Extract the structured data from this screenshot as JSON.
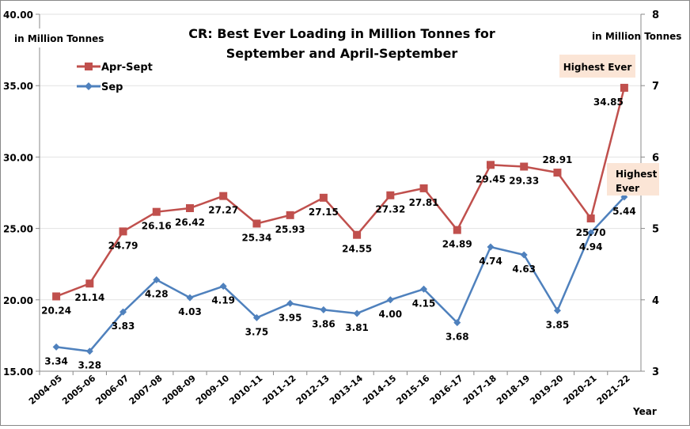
{
  "chart_data": {
    "type": "line",
    "title_line1": "CR: Best Ever Loading in Million Tonnes for",
    "title_line2": "September and April-September",
    "ylabel_left": "in Million Tonnes",
    "ylabel_right": "in Million Tonnes",
    "xlabel": "Year",
    "ylim_left": [
      15,
      40
    ],
    "ylim_right": [
      3,
      8
    ],
    "yticks_left": [
      "15.00",
      "20.00",
      "25.00",
      "30.00",
      "35.00",
      "40.00"
    ],
    "yticks_right": [
      "3",
      "4",
      "5",
      "6",
      "7",
      "8"
    ],
    "grid": true,
    "legend_position": "top-left",
    "categories": [
      "2004-05",
      "2005-06",
      "2006-07",
      "2007-08",
      "2008-09",
      "2009-10",
      "2010-11",
      "2011-12",
      "2012-13",
      "2013-14",
      "2014-15",
      "2015-16",
      "2016-17",
      "2017-18",
      "2018-19",
      "2019-20",
      "2020-21",
      "2021-22"
    ],
    "series": [
      {
        "name": "Apr-Sept",
        "axis": "left",
        "color": "#C0504D",
        "marker": "square",
        "values": [
          20.24,
          21.14,
          24.79,
          26.16,
          26.42,
          27.27,
          25.34,
          25.93,
          27.15,
          24.55,
          27.32,
          27.81,
          24.89,
          29.45,
          29.33,
          28.91,
          25.7,
          34.85
        ]
      },
      {
        "name": "Sep",
        "axis": "right",
        "color": "#4F81BD",
        "marker": "diamond",
        "values": [
          3.34,
          3.28,
          3.83,
          4.28,
          4.03,
          4.19,
          3.75,
          3.95,
          3.86,
          3.81,
          4.0,
          4.15,
          3.68,
          4.74,
          4.63,
          3.85,
          4.94,
          5.44
        ]
      }
    ],
    "annotations": [
      {
        "text": "Highest Ever",
        "series": "Apr-Sept",
        "category": "2021-22"
      },
      {
        "text_line1": "Highest",
        "text_line2": "Ever",
        "series": "Sep",
        "category": "2021-22"
      }
    ],
    "annotation_bg": "#FBE5D6"
  }
}
